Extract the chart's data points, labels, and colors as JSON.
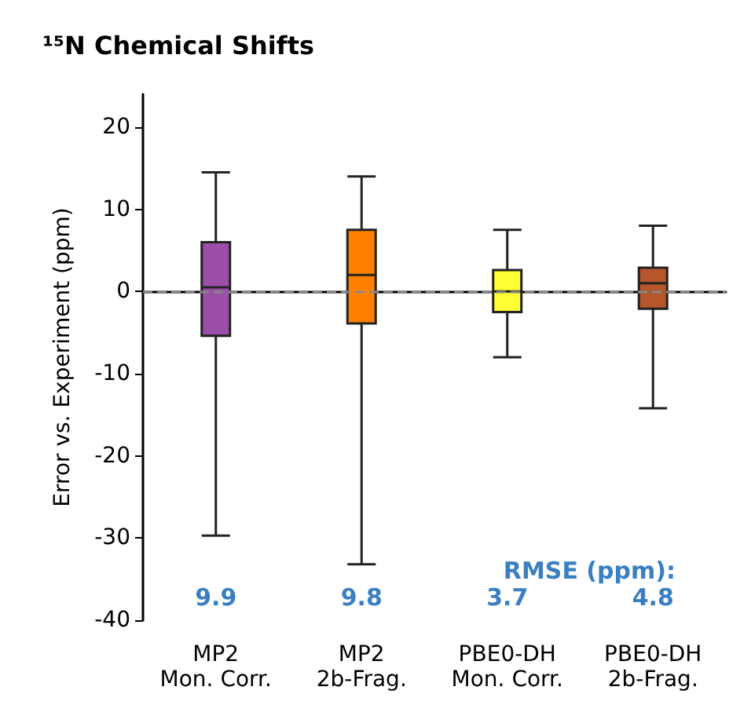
{
  "chart_data": {
    "type": "box",
    "title": "¹⁵N Chemical Shifts",
    "ylabel": "Error vs. Experiment (ppm)",
    "categories": [
      "MP2\nMon. Corr.",
      "MP2\n2b-Frag.",
      "PBE0-DH\nMon. Corr.",
      "PBE0-DH\n2b-Frag."
    ],
    "colors": [
      "#9b4fa8",
      "#ff8000",
      "#ffff33",
      "#b5562b"
    ],
    "boxes": [
      {
        "low": -29.7,
        "q1": -5.4,
        "median": 0.5,
        "q3": 6,
        "high": 14.5
      },
      {
        "low": -33.2,
        "q1": -3.9,
        "median": 2,
        "q3": 7.5,
        "high": 14
      },
      {
        "low": -8,
        "q1": -2.5,
        "median": 0,
        "q3": 2.6,
        "high": 7.5
      },
      {
        "low": -14.2,
        "q1": -2.1,
        "median": 1,
        "q3": 2.9,
        "high": 8
      }
    ],
    "ylim": [
      -40,
      24
    ],
    "yticks": [
      -40,
      -30,
      -20,
      -10,
      0,
      10,
      20
    ],
    "grid": false,
    "ref_lines": [
      {
        "axis": "y",
        "value": 0,
        "color": "#888888",
        "line_style": "dashed"
      }
    ],
    "annotations": [
      "RMSE (ppm):",
      "9.9",
      "9.8",
      "3.7",
      "4.8"
    ]
  }
}
